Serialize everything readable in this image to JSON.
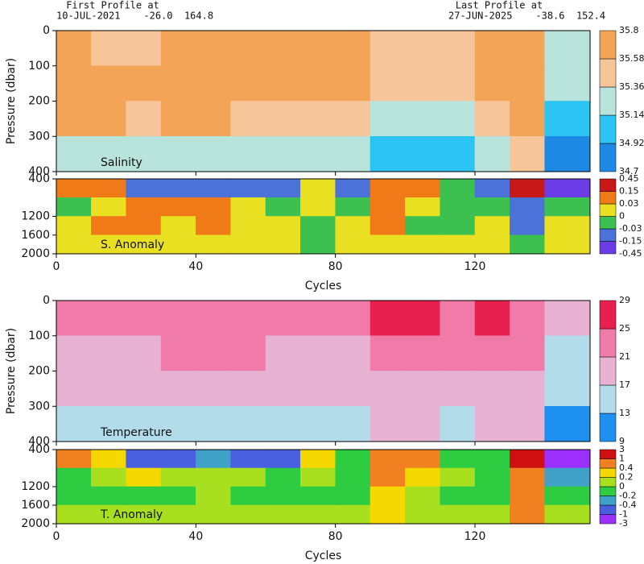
{
  "header": {
    "first_label": "First Profile at",
    "first_info": "10-JUL-2021    -26.0  164.8",
    "last_label": "Last Profile at",
    "last_info": "27-JUN-2025    -38.6  152.4"
  },
  "chart_data": [
    {
      "type": "heatmap",
      "label": "Salinity",
      "ylabel": "Pressure (dbar)",
      "xlim": [
        0,
        153
      ],
      "xticks": [
        0,
        40,
        80,
        120
      ],
      "ylim": [
        400,
        0
      ],
      "yticks": [
        0,
        100,
        200,
        300,
        400
      ],
      "x_edges": [
        0,
        10,
        20,
        30,
        40,
        50,
        60,
        70,
        80,
        90,
        100,
        110,
        120,
        130,
        140,
        153
      ],
      "y_edges": [
        0,
        100,
        200,
        300,
        400
      ],
      "z": [
        [
          35.62,
          35.55,
          35.45,
          35.6,
          35.62,
          35.6,
          35.58,
          35.6,
          35.6,
          35.5,
          35.55,
          35.5,
          35.62,
          35.65,
          35.3
        ],
        [
          35.7,
          35.68,
          35.65,
          35.68,
          35.68,
          35.67,
          35.66,
          35.65,
          35.64,
          35.45,
          35.5,
          35.45,
          35.62,
          35.7,
          35.2
        ],
        [
          35.6,
          35.62,
          35.55,
          35.58,
          35.58,
          35.55,
          35.55,
          35.5,
          35.5,
          35.3,
          35.35,
          35.3,
          35.5,
          35.65,
          35.0
        ],
        [
          35.2,
          35.3,
          35.25,
          35.25,
          35.3,
          35.25,
          35.2,
          35.2,
          35.25,
          35.05,
          35.1,
          35.05,
          35.2,
          35.55,
          34.85
        ]
      ],
      "levels": [
        34.7,
        34.92,
        35.14,
        35.36,
        35.58,
        35.8
      ],
      "colors": [
        "#1e88e5",
        "#2cc4f2",
        "#b8e4dc",
        "#f6c69a",
        "#f4a457"
      ]
    },
    {
      "type": "heatmap",
      "label": "S. Anomaly",
      "xlabel": "Cycles",
      "xlim": [
        0,
        153
      ],
      "xticks": [
        0,
        40,
        80,
        120
      ],
      "ylim": [
        2000,
        400
      ],
      "yticks": [
        400,
        1200,
        1600,
        2000
      ],
      "x_edges": [
        0,
        10,
        20,
        30,
        40,
        50,
        60,
        70,
        80,
        90,
        100,
        110,
        120,
        130,
        140,
        153
      ],
      "y_edges": [
        400,
        800,
        1200,
        1600,
        2000
      ],
      "z": [
        [
          0.1,
          0.05,
          -0.1,
          -0.1,
          -0.05,
          -0.1,
          -0.1,
          0.02,
          -0.05,
          0.1,
          0.05,
          -0.02,
          -0.05,
          0.2,
          -0.2
        ],
        [
          -0.02,
          0.01,
          0.05,
          0.03,
          0.05,
          0.02,
          -0.02,
          0.01,
          -0.01,
          0.05,
          0.0,
          -0.02,
          -0.02,
          -0.1,
          -0.02
        ],
        [
          0.02,
          0.05,
          0.04,
          0.02,
          0.08,
          0.02,
          0.0,
          -0.01,
          0.0,
          0.04,
          -0.01,
          -0.01,
          0.0,
          -0.05,
          0.01
        ],
        [
          0.01,
          0.02,
          0.02,
          0.01,
          0.02,
          0.01,
          0.01,
          -0.01,
          0.0,
          0.02,
          0.0,
          0.0,
          0.0,
          -0.02,
          0.01
        ]
      ],
      "levels": [
        -0.45,
        -0.15,
        -0.03,
        0,
        0.03,
        0.15,
        0.45
      ],
      "colors": [
        "#6a3de6",
        "#4a72d8",
        "#3cc050",
        "#e8e020",
        "#f07a18",
        "#c81818"
      ]
    },
    {
      "type": "heatmap",
      "label": "Temperature",
      "ylabel": "Pressure (dbar)",
      "xlim": [
        0,
        153
      ],
      "xticks": [
        0,
        40,
        80,
        120
      ],
      "ylim": [
        400,
        0
      ],
      "yticks": [
        0,
        100,
        200,
        300,
        400
      ],
      "x_edges": [
        0,
        10,
        20,
        30,
        40,
        50,
        60,
        70,
        80,
        90,
        100,
        110,
        120,
        130,
        140,
        153
      ],
      "y_edges": [
        0,
        100,
        200,
        300,
        400
      ],
      "z": [
        [
          23,
          22,
          23,
          23,
          23.5,
          23,
          23,
          23,
          22,
          25,
          25,
          24,
          25,
          24,
          18
        ],
        [
          20,
          20,
          20.5,
          21,
          21,
          21,
          20.5,
          20.5,
          20,
          23,
          23,
          22,
          23,
          22,
          16
        ],
        [
          18,
          18,
          18.5,
          19,
          19,
          18.5,
          18,
          18,
          17.5,
          20,
          20,
          19,
          20,
          20,
          14
        ],
        [
          15,
          15.5,
          16,
          16,
          16.5,
          16,
          15.5,
          15.5,
          15,
          17,
          17,
          16,
          17,
          18,
          12
        ]
      ],
      "levels": [
        9,
        13,
        17,
        21,
        25,
        29
      ],
      "colors": [
        "#1e90f0",
        "#b2dcea",
        "#e8b2d2",
        "#f07aa8",
        "#e8204f"
      ]
    },
    {
      "type": "heatmap",
      "label": "T. Anomaly",
      "xlabel": "Cycles",
      "xlim": [
        0,
        153
      ],
      "xticks": [
        0,
        40,
        80,
        120
      ],
      "ylim": [
        2000,
        400
      ],
      "yticks": [
        400,
        1200,
        1600,
        2000
      ],
      "x_edges": [
        0,
        10,
        20,
        30,
        40,
        50,
        60,
        70,
        80,
        90,
        100,
        110,
        120,
        130,
        140,
        153
      ],
      "y_edges": [
        400,
        800,
        1200,
        1600,
        2000
      ],
      "z": [
        [
          0.8,
          0.3,
          -0.5,
          -0.5,
          -0.3,
          -0.5,
          -0.5,
          0.2,
          -0.2,
          0.6,
          0.5,
          -0.1,
          -0.2,
          1.5,
          -1.2
        ],
        [
          -0.1,
          0.1,
          0.2,
          0.1,
          0.1,
          0.0,
          -0.2,
          0.1,
          -0.1,
          0.5,
          0.2,
          0.0,
          -0.1,
          0.6,
          -0.3
        ],
        [
          -0.1,
          -0.1,
          -0.1,
          -0.15,
          0.1,
          -0.1,
          -0.15,
          -0.1,
          -0.1,
          0.3,
          0.0,
          -0.1,
          -0.1,
          0.5,
          -0.1
        ],
        [
          0.05,
          0.05,
          0.05,
          0.0,
          0.05,
          0.0,
          0.0,
          0.0,
          0.0,
          0.2,
          0.05,
          0.0,
          0.0,
          0.5,
          0.05
        ]
      ],
      "levels": [
        -3,
        -1,
        -0.4,
        -0.2,
        0,
        0.2,
        0.4,
        1,
        3
      ],
      "colors": [
        "#9b30ff",
        "#4a5fe0",
        "#3fa0c8",
        "#2ecc40",
        "#a8e020",
        "#f5d800",
        "#f08020",
        "#d01010"
      ]
    }
  ]
}
